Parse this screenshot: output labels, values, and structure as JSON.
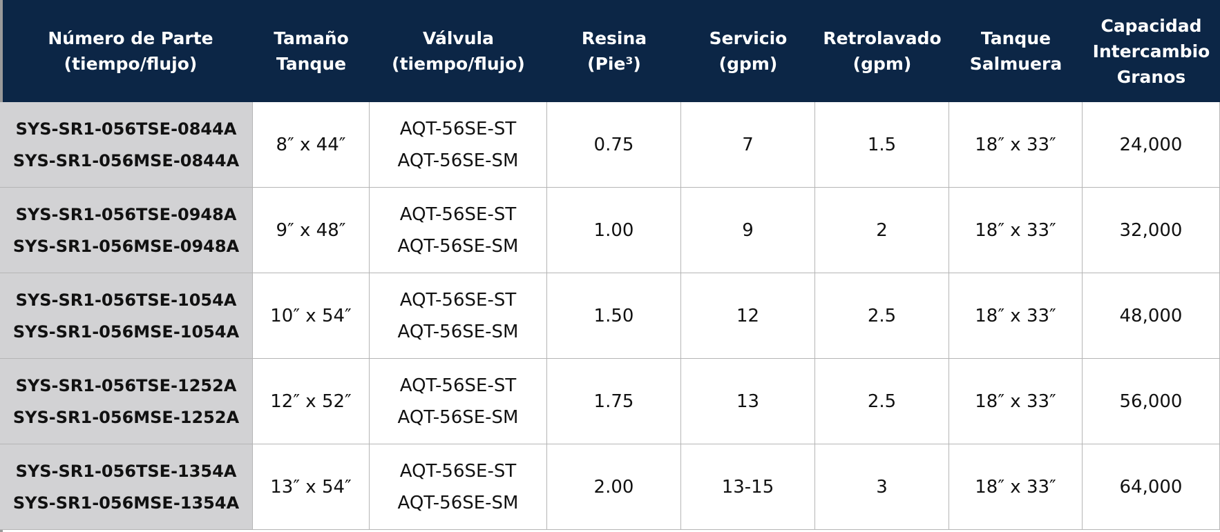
{
  "table": {
    "headers": [
      [
        "Número de Parte",
        "(tiempo/flujo)"
      ],
      [
        "Tamaño",
        "Tanque"
      ],
      [
        "Válvula",
        "(tiempo/flujo)"
      ],
      [
        "Resina",
        "(Pie³)"
      ],
      [
        "Servicio",
        "(gpm)"
      ],
      [
        "Retrolavado",
        "(gpm)"
      ],
      [
        "Tanque",
        "Salmuera"
      ],
      [
        "Capacidad",
        "Intercambio",
        "Granos"
      ]
    ],
    "rows": [
      [
        [
          "SYS-SR1-056TSE-0844A",
          "SYS-SR1-056MSE-0844A"
        ],
        [
          "8″ x 44″"
        ],
        [
          "AQT-56SE-ST",
          "AQT-56SE-SM"
        ],
        [
          "0.75"
        ],
        [
          "7"
        ],
        [
          "1.5"
        ],
        [
          "18″ x 33″"
        ],
        [
          "24,000"
        ]
      ],
      [
        [
          "SYS-SR1-056TSE-0948A",
          "SYS-SR1-056MSE-0948A"
        ],
        [
          "9″ x 48″"
        ],
        [
          "AQT-56SE-ST",
          "AQT-56SE-SM"
        ],
        [
          "1.00"
        ],
        [
          "9"
        ],
        [
          "2"
        ],
        [
          "18″ x 33″"
        ],
        [
          "32,000"
        ]
      ],
      [
        [
          "SYS-SR1-056TSE-1054A",
          "SYS-SR1-056MSE-1054A"
        ],
        [
          "10″ x 54″"
        ],
        [
          "AQT-56SE-ST",
          "AQT-56SE-SM"
        ],
        [
          "1.50"
        ],
        [
          "12"
        ],
        [
          "2.5"
        ],
        [
          "18″ x 33″"
        ],
        [
          "48,000"
        ]
      ],
      [
        [
          "SYS-SR1-056TSE-1252A",
          "SYS-SR1-056MSE-1252A"
        ],
        [
          "12″ x 52″"
        ],
        [
          "AQT-56SE-ST",
          "AQT-56SE-SM"
        ],
        [
          "1.75"
        ],
        [
          "13"
        ],
        [
          "2.5"
        ],
        [
          "18″ x 33″"
        ],
        [
          "56,000"
        ]
      ],
      [
        [
          "SYS-SR1-056TSE-1354A",
          "SYS-SR1-056MSE-1354A"
        ],
        [
          "13″ x 54″"
        ],
        [
          "AQT-56SE-ST",
          "AQT-56SE-SM"
        ],
        [
          "2.00"
        ],
        [
          "13-15"
        ],
        [
          "3"
        ],
        [
          "18″ x 33″"
        ],
        [
          "64,000"
        ]
      ]
    ]
  }
}
